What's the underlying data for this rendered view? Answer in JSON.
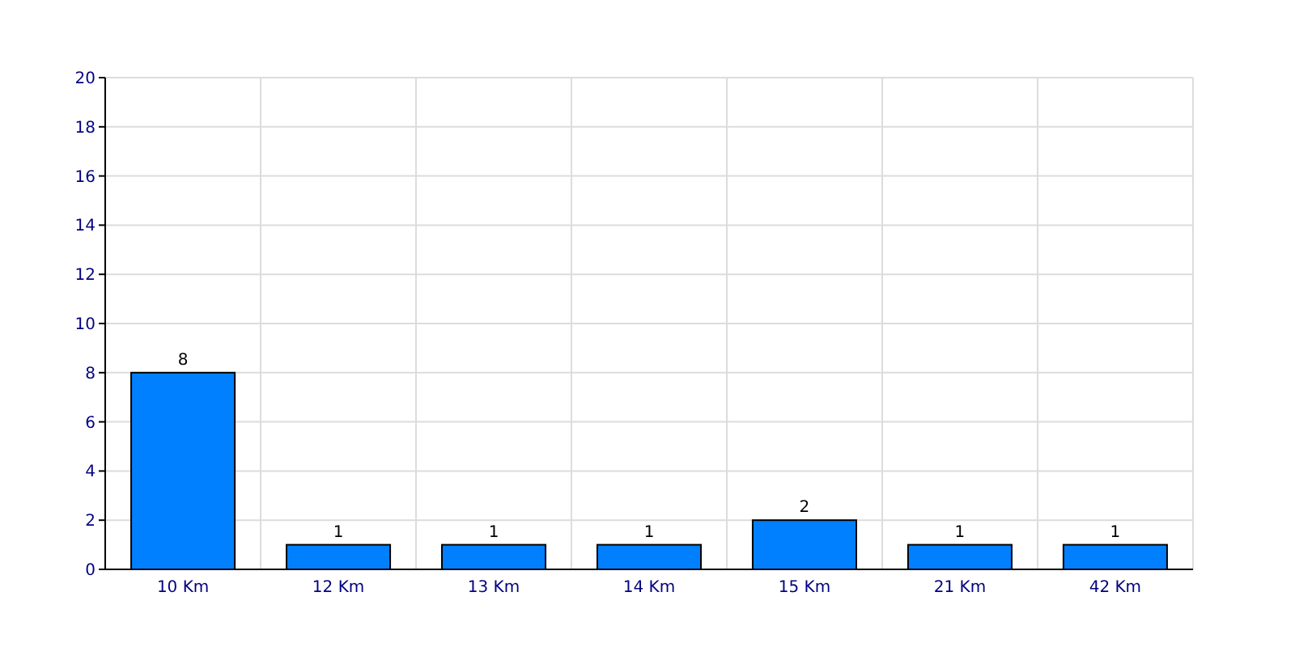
{
  "chart_data": {
    "type": "bar",
    "categories": [
      "10 Km",
      "12 Km",
      "13 Km",
      "14 Km",
      "15 Km",
      "21 Km",
      "42 Km"
    ],
    "series": [
      {
        "color": "#0080ff",
        "values": [
          8,
          1,
          1,
          1,
          2,
          1,
          1
        ]
      }
    ],
    "ylim": [
      0,
      20
    ],
    "yticks": [
      0,
      2,
      4,
      6,
      8,
      10,
      12,
      14,
      16,
      18,
      20
    ],
    "grid": true,
    "data_labels": true
  }
}
